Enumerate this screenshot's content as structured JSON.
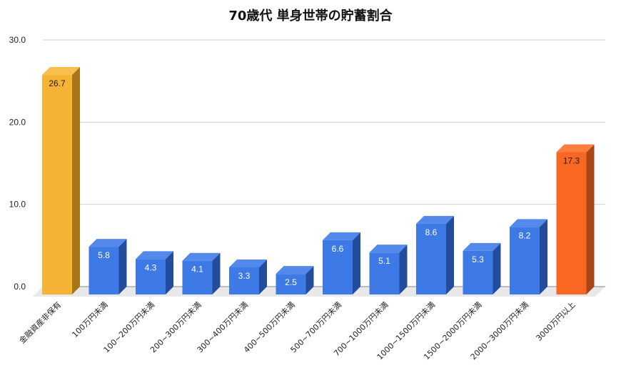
{
  "chart_data": {
    "type": "bar",
    "title": "70歳代 単身世帯の貯蓄割合",
    "xlabel": "",
    "ylabel": "",
    "ylim": [
      0,
      30
    ],
    "yticks": [
      "0.0",
      "10.0",
      "20.0",
      "30.0"
    ],
    "grid": true,
    "legend": "none",
    "style": "3d",
    "categories": [
      "金融資産非保有",
      "100万円未満",
      "100~200万円未満",
      "200~300万円未満",
      "300~400万円未満",
      "400~500万円未満",
      "500~700万円未満",
      "700~1000万円未満",
      "1000~1500万円未満",
      "1500~2000万円未満",
      "2000~3000万円未満",
      "3000万円以上"
    ],
    "values": [
      26.7,
      5.8,
      4.3,
      4.1,
      3.3,
      2.5,
      6.6,
      5.1,
      8.6,
      5.3,
      8.2,
      17.3
    ],
    "value_labels": [
      "26.7",
      "5.8",
      "4.3",
      "4.1",
      "3.3",
      "2.5",
      "6.6",
      "5.1",
      "8.6",
      "5.3",
      "8.2",
      "17.3"
    ],
    "bar_colors": [
      "#F5B335",
      "#3D7AE5",
      "#3D7AE5",
      "#3D7AE5",
      "#3D7AE5",
      "#3D7AE5",
      "#3D7AE5",
      "#3D7AE5",
      "#3D7AE5",
      "#3D7AE5",
      "#3D7AE5",
      "#FA6722"
    ]
  },
  "colors": {
    "yellow_front": "#F5B335",
    "yellow_side": "#A87519",
    "yellow_top": "#F7BF4E",
    "blue_front": "#3D7AE5",
    "blue_side": "#244C9C",
    "blue_top": "#5289EA",
    "orange_front": "#FA6722",
    "orange_side": "#A8461A",
    "orange_top": "#FB7E3E",
    "grid": "#D0D0D0",
    "floor": "#E8E8E8"
  }
}
